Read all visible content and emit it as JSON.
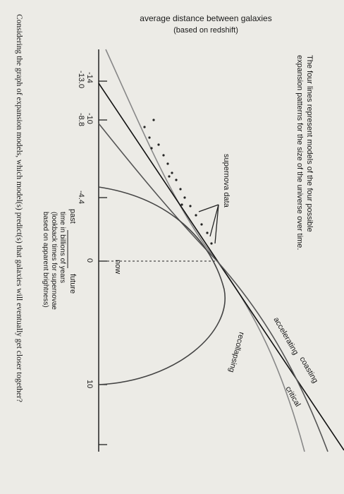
{
  "title": "average distance between galaxies",
  "subtitle": "(based on redshift)",
  "caption": [
    "The four lines represent models of the four possible",
    "expansion patterns for the size of the universe over time."
  ],
  "supernova_label": "supernova data",
  "now_label": "now",
  "past_label": "past",
  "future_label": "future",
  "axis_label": [
    "time in billions of years",
    "(lookback times for supernovae",
    "based on apparent brightness)"
  ],
  "ticks": [
    "-14",
    "-13.0",
    "-10",
    "-8.8",
    "-4.4",
    "0",
    "10"
  ],
  "models": [
    "accelerating",
    "coasting",
    "critical",
    "recollapsing"
  ],
  "question": "Considering the graph of expansion models, which model(s) predict(s) that galaxies will eventually get closer together?"
}
